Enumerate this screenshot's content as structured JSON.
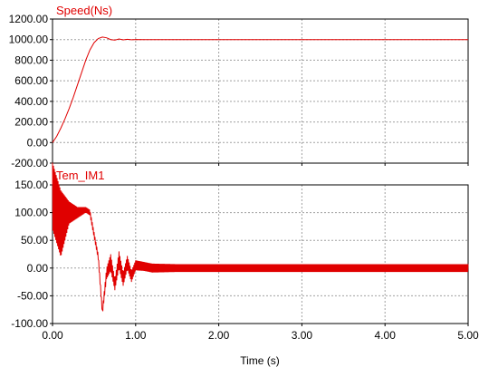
{
  "colors": {
    "series": "#e00000",
    "axis": "#000000",
    "grid": "#a0a0a0",
    "background": "#ffffff"
  },
  "chart_data": [
    {
      "type": "line",
      "title": "Speed(Ns)",
      "xlabel": "",
      "ylabel": "",
      "xlim": [
        0,
        5
      ],
      "ylim": [
        -200,
        1200
      ],
      "yticks": [
        -200,
        0,
        200,
        400,
        600,
        800,
        1000,
        1200
      ],
      "ytick_labels": [
        "-200.00",
        "0.00",
        "200.00",
        "400.00",
        "600.00",
        "800.00",
        "1000.00",
        "1200.00"
      ],
      "grid": true,
      "series": [
        {
          "x": [
            0,
            0.05,
            0.1,
            0.15,
            0.2,
            0.25,
            0.3,
            0.35,
            0.4,
            0.45,
            0.5,
            0.55,
            0.6,
            0.65,
            0.7,
            0.75,
            0.8,
            0.85,
            0.9,
            0.95,
            1.0,
            1.1,
            1.2,
            1.5,
            2.0,
            3.0,
            4.0,
            5.0
          ],
          "y": [
            0,
            60,
            140,
            230,
            330,
            440,
            560,
            680,
            800,
            900,
            970,
            1010,
            1025,
            1018,
            1000,
            995,
            1006,
            998,
            1003,
            999,
            1001,
            1000,
            1000,
            1000,
            1000,
            1000,
            1000,
            1000
          ]
        }
      ]
    },
    {
      "type": "line",
      "title": "Tem_IM1",
      "xlabel": "Time (s)",
      "ylabel": "",
      "xlim": [
        0,
        5
      ],
      "ylim": [
        -100,
        150
      ],
      "xticks": [
        0,
        1,
        2,
        3,
        4,
        5
      ],
      "xtick_labels": [
        "0.00",
        "1.00",
        "2.00",
        "3.00",
        "4.00",
        "5.00"
      ],
      "yticks": [
        -100,
        -50,
        0,
        50,
        100,
        150
      ],
      "ytick_labels": [
        "-100.00",
        "-50.00",
        "0.00",
        "50.00",
        "100.00",
        "150.00"
      ],
      "grid": true,
      "series": [
        {
          "x": [
            0,
            0.1,
            0.2,
            0.3,
            0.4,
            0.45,
            0.5,
            0.55,
            0.6,
            0.65,
            0.7,
            0.75,
            0.8,
            0.85,
            0.9,
            0.95,
            1.0,
            1.1,
            1.2,
            1.5,
            2.0,
            3.0,
            4.0,
            5.0
          ],
          "y": [
            130,
            80,
            100,
            100,
            105,
            100,
            60,
            20,
            -80,
            -10,
            10,
            -30,
            15,
            -20,
            10,
            -15,
            5,
            3,
            0,
            0,
            0,
            0,
            0,
            0
          ],
          "envelope": [
            60,
            60,
            20,
            10,
            5,
            5,
            5,
            5,
            5,
            10,
            15,
            10,
            15,
            12,
            12,
            10,
            9,
            8,
            8,
            7,
            7,
            7,
            7,
            7
          ]
        }
      ]
    }
  ]
}
